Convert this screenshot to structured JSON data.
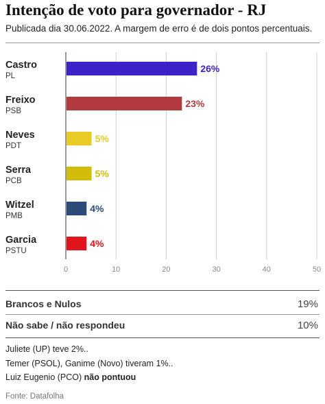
{
  "chart_data": {
    "type": "bar",
    "orientation": "horizontal",
    "title": "Intenção de voto para governador - RJ",
    "subtitle": "Publicada dia 30.06.2022. A margem de erro é de dois pontos percentuais.",
    "xlim": [
      0,
      50
    ],
    "xticks": [
      "0",
      "10",
      "20",
      "30",
      "40",
      "50"
    ],
    "grid": true,
    "bars": [
      {
        "name": "Castro",
        "party": "PL",
        "value": 26,
        "label": "26%",
        "color": "#3b22c9"
      },
      {
        "name": "Freixo",
        "party": "PSB",
        "value": 23,
        "label": "23%",
        "color": "#b23a3e"
      },
      {
        "name": "Neves",
        "party": "PDT",
        "value": 5,
        "label": "5%",
        "color": "#e8cb26"
      },
      {
        "name": "Serra",
        "party": "PCB",
        "value": 5,
        "label": "5%",
        "color": "#d2bc0a"
      },
      {
        "name": "Witzel",
        "party": "PMB",
        "value": 4,
        "label": "4%",
        "color": "#2d4a78"
      },
      {
        "name": "Garcia",
        "party": "PSTU",
        "value": 4,
        "label": "4%",
        "color": "#e0141b"
      }
    ]
  },
  "summary": [
    {
      "label": "Brancos e Nulos",
      "value": "19%"
    },
    {
      "label": "Não sabe / não respondeu",
      "value": "10%"
    }
  ],
  "notes": {
    "line1": "Juliete (UP) teve 2%..",
    "line2": "Temer (PSOL), Ganime (Novo) tiveram 1%..",
    "line3_prefix": "Luiz Eugenio (PCO) ",
    "line3_bold": "não pontuou"
  },
  "source": "Fonte: Datafolha"
}
